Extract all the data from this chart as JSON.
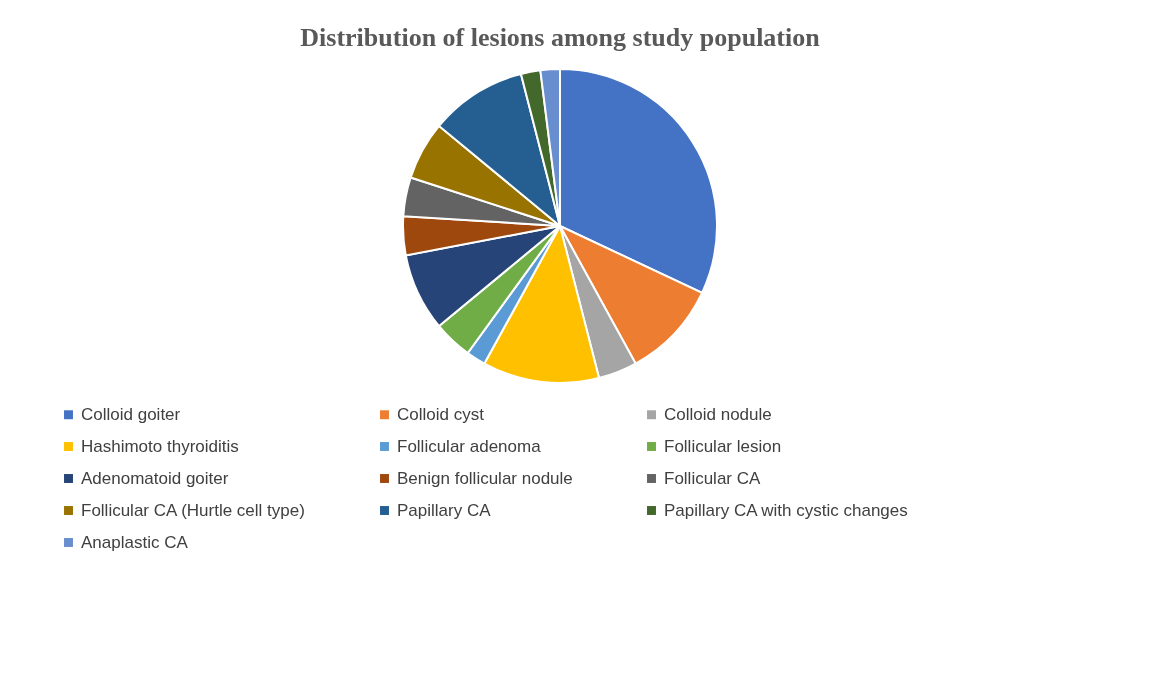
{
  "chart_data": {
    "type": "pie",
    "title": "Distribution of lesions among study population",
    "categories": [
      "Colloid goiter",
      "Colloid cyst",
      "Colloid nodule",
      "Hashimoto thyroiditis",
      "Follicular adenoma",
      "Follicular lesion",
      "Adenomatoid goiter",
      "Benign follicular nodule",
      "Follicular CA",
      "Follicular CA (Hurtle cell type)",
      "Papillary CA",
      "Papillary CA with cystic changes",
      "Anaplastic CA"
    ],
    "values": [
      32,
      10,
      4,
      12,
      2,
      4,
      8,
      4,
      4,
      6,
      10,
      2,
      2
    ],
    "colors": [
      "#4472c4",
      "#ed7d31",
      "#a5a5a5",
      "#ffc000",
      "#5b9bd5",
      "#70ad47",
      "#264478",
      "#9e480e",
      "#636363",
      "#997300",
      "#255e91",
      "#43682b",
      "#698ed0"
    ],
    "legend": "bottom"
  }
}
